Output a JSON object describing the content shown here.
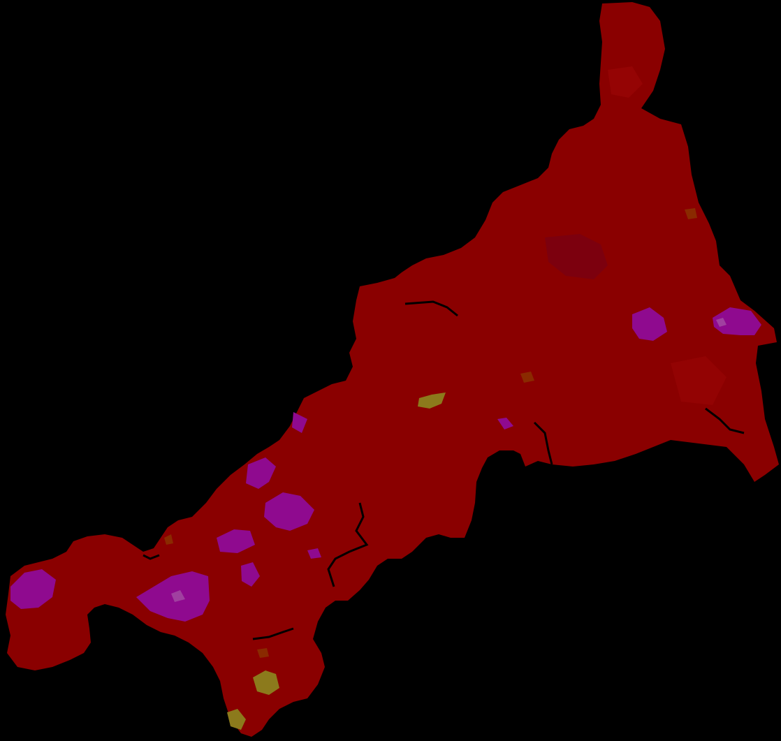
{
  "map": {
    "background_color": "#000000",
    "colors": {
      "land_base": "#8a0000",
      "land_shade": "#9a0505",
      "land_dark": "#7a0010",
      "purple_zone": "#8f0a8f",
      "light_purple": "#a040a0",
      "olive_zone": "#8c7a1c",
      "brown_zone": "#8a2a00"
    }
  }
}
